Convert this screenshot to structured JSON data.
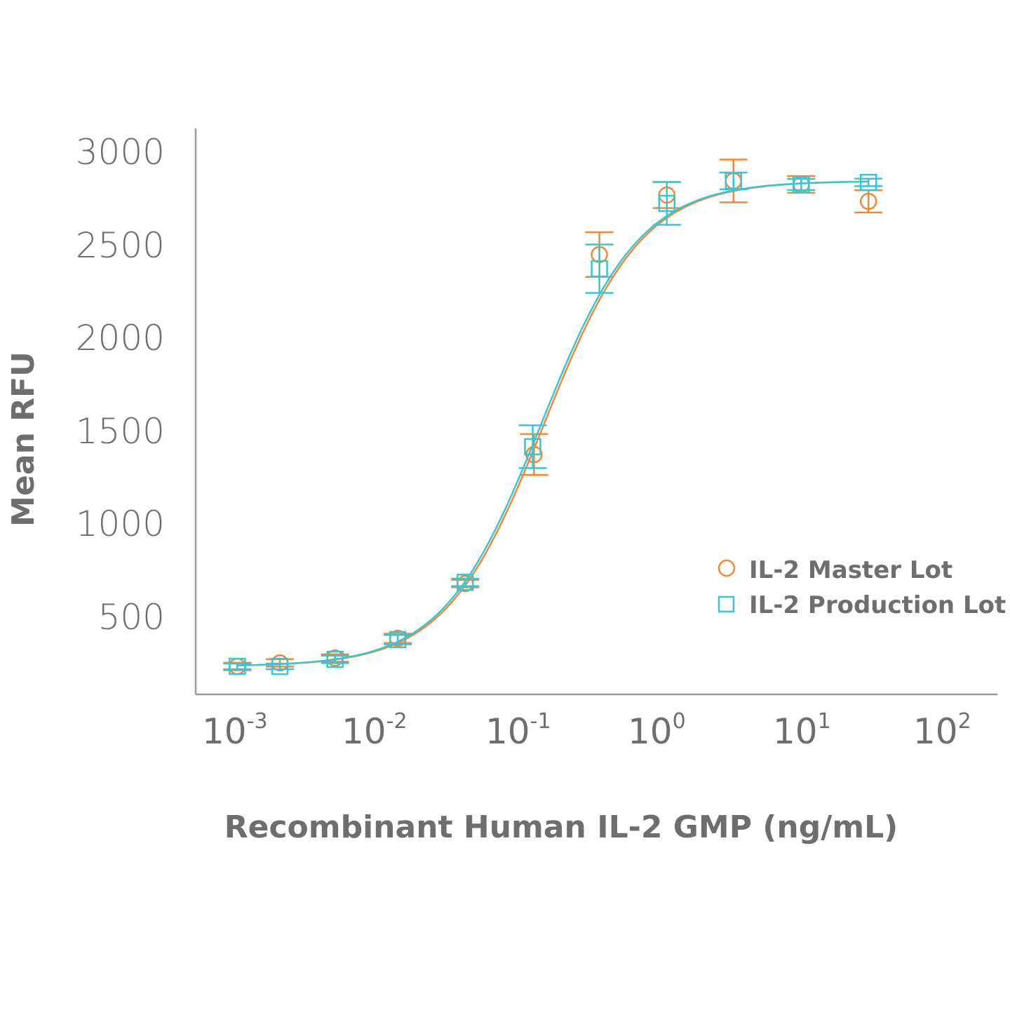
{
  "chart_data": {
    "type": "scatter",
    "title": "",
    "xlabel": "Recombinant Human IL-2 GMP (ng/mL)",
    "ylabel": "Mean RFU",
    "x_scale": "log",
    "xlim": [
      0.001,
      100
    ],
    "ylim": [
      78,
      3000
    ],
    "grid": false,
    "legend_position": "lower right (inside plot)",
    "x_ticks": [
      {
        "base": "10",
        "exp": "-3"
      },
      {
        "base": "10",
        "exp": "-2"
      },
      {
        "base": "10",
        "exp": "-1"
      },
      {
        "base": "10",
        "exp": "0"
      },
      {
        "base": "10",
        "exp": "1"
      },
      {
        "base": "10",
        "exp": "2"
      }
    ],
    "y_ticks": [
      "3000",
      "2500",
      "2000",
      "1500",
      "1000",
      "500"
    ],
    "y_tick_values": [
      3000,
      2500,
      2000,
      1500,
      1000,
      500
    ],
    "series": [
      {
        "name": "IL-2 Master Lot",
        "color": "#f0883a",
        "marker": "circle",
        "x": [
          0.0011,
          0.0022,
          0.0054,
          0.015,
          0.045,
          0.138,
          0.4,
          1.2,
          3.55,
          10.7,
          32.0
        ],
        "y": [
          228,
          247,
          273,
          379,
          673,
          1367,
          2442,
          2762,
          2838,
          2819,
          2728
        ],
        "err": [
          20,
          20,
          20,
          25,
          20,
          110,
          120,
          70,
          115,
          45,
          60
        ],
        "fit": "4PL sigmoid"
      },
      {
        "name": "IL-2 Production Lot",
        "color": "#3cc4d4",
        "marker": "square",
        "x": [
          0.0011,
          0.0022,
          0.0054,
          0.015,
          0.045,
          0.135,
          0.4,
          1.2,
          3.55,
          10.7,
          32.0
        ],
        "y": [
          228,
          228,
          266,
          372,
          680,
          1409,
          2366,
          2717,
          2838,
          2819,
          2830
        ],
        "err": [
          15,
          15,
          20,
          25,
          20,
          115,
          130,
          115,
          45,
          30,
          20
        ],
        "fit": "4PL sigmoid"
      }
    ]
  },
  "legend": {
    "items": [
      {
        "label": "IL-2 Master Lot",
        "marker": "circle",
        "color": "#f0883a"
      },
      {
        "label": "IL-2 Production Lot",
        "marker": "square",
        "color": "#3cc4d4"
      }
    ]
  },
  "axes": {
    "x_title": "Recombinant Human IL-2 GMP (ng/mL)",
    "y_title": "Mean RFU"
  }
}
